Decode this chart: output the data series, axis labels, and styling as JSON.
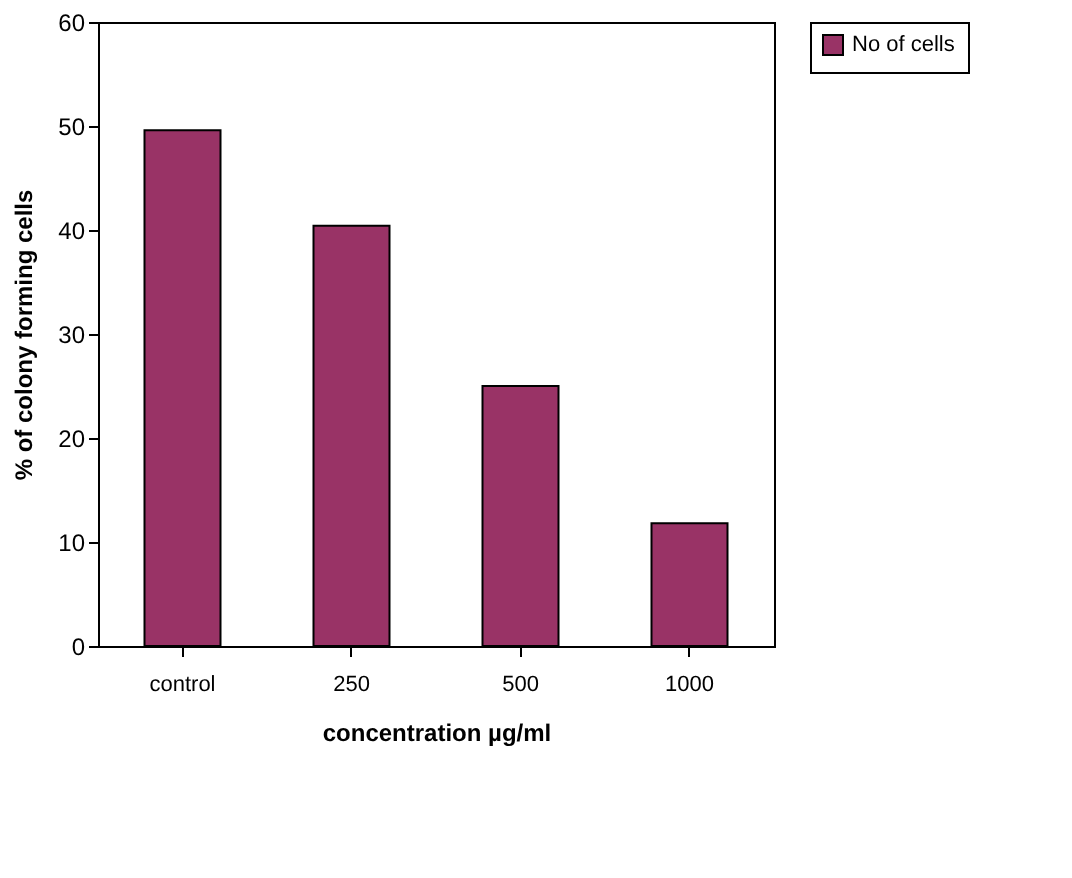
{
  "chart_data": {
    "type": "bar",
    "xlabel": "concentration µg/ml",
    "ylabel": "% of colony forming cells",
    "categories": [
      "control",
      "250",
      "500",
      "1000"
    ],
    "series": [
      {
        "name": "No of cells",
        "color": "#993366",
        "values": [
          49.6,
          40.4,
          25,
          11.8
        ]
      }
    ],
    "ylim": [
      0,
      60
    ],
    "yticks": [
      0,
      10,
      20,
      30,
      40,
      50,
      60
    ],
    "grid": false,
    "legend": "right"
  }
}
